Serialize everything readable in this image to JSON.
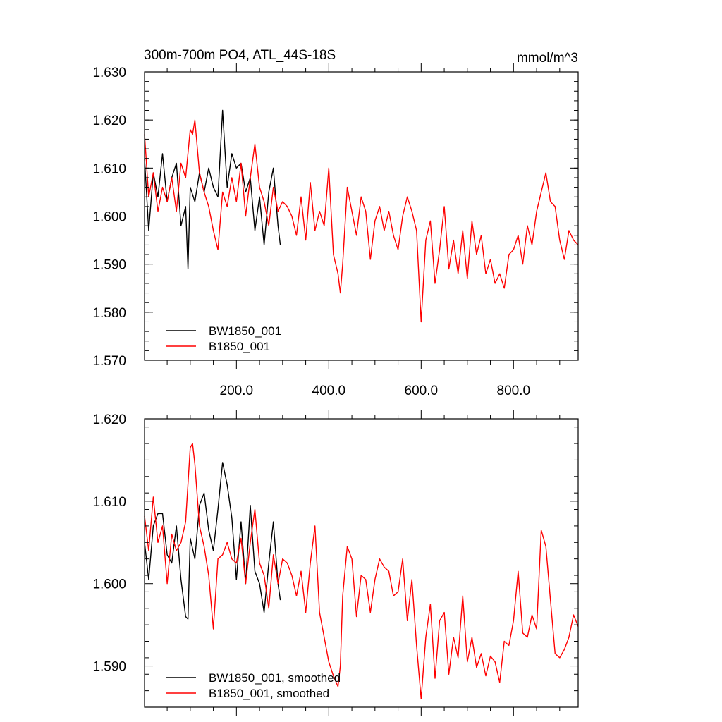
{
  "chart_data": [
    {
      "type": "line",
      "title": "300m-700m PO4, ATL_44S-18S",
      "units": "mmol/m^3",
      "xlim": [
        1,
        940
      ],
      "ylim": [
        1.57,
        1.63
      ],
      "x_ticks": [
        200,
        400,
        600,
        800
      ],
      "x_tick_labels": [
        "200.0",
        "400.0",
        "600.0",
        "800.0"
      ],
      "y_ticks": [
        1.57,
        1.58,
        1.59,
        1.6,
        1.61,
        1.62,
        1.63
      ],
      "y_tick_labels": [
        "1.570",
        "1.580",
        "1.590",
        "1.600",
        "1.610",
        "1.620",
        "1.630"
      ],
      "legend_position": "bottom-left",
      "series": [
        {
          "name": "BW1850_001",
          "color": "#000000",
          "x": [
            1,
            10,
            20,
            30,
            40,
            50,
            60,
            70,
            80,
            90,
            95,
            100,
            110,
            120,
            130,
            140,
            150,
            160,
            170,
            180,
            190,
            200,
            210,
            220,
            230,
            240,
            250,
            260,
            270,
            280,
            290,
            295
          ],
          "values": [
            1.612,
            1.597,
            1.609,
            1.604,
            1.613,
            1.603,
            1.608,
            1.611,
            1.598,
            1.602,
            1.589,
            1.606,
            1.603,
            1.609,
            1.605,
            1.61,
            1.606,
            1.604,
            1.622,
            1.606,
            1.613,
            1.61,
            1.611,
            1.605,
            1.608,
            1.597,
            1.604,
            1.594,
            1.605,
            1.61,
            1.598,
            1.594
          ]
        },
        {
          "name": "B1850_001",
          "color": "#ff0000",
          "x": [
            1,
            10,
            20,
            30,
            40,
            50,
            60,
            70,
            80,
            90,
            100,
            105,
            110,
            120,
            130,
            140,
            150,
            160,
            170,
            180,
            190,
            200,
            210,
            220,
            230,
            240,
            250,
            260,
            270,
            280,
            290,
            300,
            310,
            320,
            330,
            340,
            350,
            360,
            370,
            380,
            390,
            400,
            410,
            420,
            425,
            430,
            440,
            450,
            460,
            470,
            480,
            490,
            500,
            510,
            520,
            530,
            540,
            550,
            560,
            570,
            580,
            590,
            600,
            610,
            620,
            630,
            640,
            650,
            660,
            670,
            680,
            690,
            700,
            710,
            720,
            730,
            740,
            750,
            760,
            770,
            780,
            790,
            800,
            810,
            820,
            830,
            840,
            850,
            860,
            870,
            880,
            890,
            900,
            910,
            920,
            930,
            940
          ],
          "values": [
            1.617,
            1.604,
            1.609,
            1.601,
            1.606,
            1.603,
            1.608,
            1.601,
            1.611,
            1.608,
            1.618,
            1.617,
            1.62,
            1.609,
            1.605,
            1.602,
            1.597,
            1.593,
            1.605,
            1.602,
            1.608,
            1.603,
            1.611,
            1.6,
            1.608,
            1.615,
            1.606,
            1.603,
            1.598,
            1.606,
            1.601,
            1.603,
            1.602,
            1.6,
            1.596,
            1.604,
            1.595,
            1.607,
            1.597,
            1.601,
            1.598,
            1.61,
            1.592,
            1.588,
            1.584,
            1.59,
            1.606,
            1.601,
            1.596,
            1.604,
            1.601,
            1.591,
            1.599,
            1.602,
            1.597,
            1.601,
            1.596,
            1.593,
            1.6,
            1.604,
            1.601,
            1.597,
            1.578,
            1.595,
            1.599,
            1.586,
            1.593,
            1.602,
            1.589,
            1.595,
            1.588,
            1.597,
            1.587,
            1.599,
            1.592,
            1.596,
            1.588,
            1.591,
            1.586,
            1.588,
            1.585,
            1.592,
            1.593,
            1.596,
            1.59,
            1.598,
            1.594,
            1.601,
            1.605,
            1.609,
            1.603,
            1.602,
            1.595,
            1.591,
            1.597,
            1.595,
            1.594
          ]
        }
      ]
    },
    {
      "type": "line",
      "title": "",
      "xlim": [
        1,
        940
      ],
      "ylim": [
        1.585,
        1.62
      ],
      "x_ticks": [
        200,
        400,
        600,
        800
      ],
      "x_tick_labels": [],
      "y_ticks": [
        1.59,
        1.6,
        1.61,
        1.62
      ],
      "y_tick_labels": [
        "1.590",
        "1.600",
        "1.610",
        "1.620"
      ],
      "legend_position": "bottom-left",
      "series": [
        {
          "name": "BW1850_001, smoothed",
          "color": "#000000",
          "x": [
            1,
            10,
            20,
            30,
            40,
            50,
            60,
            70,
            80,
            90,
            95,
            100,
            110,
            120,
            130,
            140,
            150,
            160,
            170,
            180,
            190,
            200,
            210,
            220,
            230,
            240,
            250,
            260,
            270,
            280,
            290,
            295
          ],
          "values": [
            1.605,
            1.6005,
            1.607,
            1.6085,
            1.6085,
            1.6035,
            1.6025,
            1.607,
            1.6005,
            1.596,
            1.5957,
            1.6055,
            1.603,
            1.6095,
            1.611,
            1.6065,
            1.604,
            1.609,
            1.6147,
            1.612,
            1.608,
            1.6005,
            1.6075,
            1.6,
            1.6095,
            1.6015,
            1.6,
            1.5965,
            1.6025,
            1.6075,
            1.6,
            1.598
          ]
        },
        {
          "name": "B1850_001, smoothed",
          "color": "#ff0000",
          "x": [
            1,
            10,
            20,
            30,
            40,
            50,
            60,
            70,
            80,
            90,
            100,
            105,
            110,
            120,
            130,
            140,
            150,
            160,
            170,
            180,
            190,
            200,
            210,
            220,
            230,
            240,
            250,
            260,
            270,
            280,
            290,
            300,
            310,
            320,
            330,
            340,
            350,
            360,
            370,
            380,
            390,
            400,
            410,
            420,
            425,
            430,
            440,
            450,
            460,
            470,
            480,
            490,
            500,
            510,
            520,
            530,
            540,
            550,
            560,
            570,
            580,
            590,
            600,
            610,
            620,
            630,
            640,
            650,
            660,
            670,
            680,
            690,
            700,
            710,
            720,
            730,
            740,
            750,
            760,
            770,
            780,
            790,
            800,
            810,
            820,
            830,
            840,
            850,
            860,
            870,
            880,
            890,
            900,
            910,
            920,
            930,
            940
          ],
          "values": [
            1.6082,
            1.604,
            1.6105,
            1.605,
            1.607,
            1.6,
            1.606,
            1.604,
            1.605,
            1.6075,
            1.6165,
            1.617,
            1.6145,
            1.607,
            1.6045,
            1.601,
            1.5945,
            1.603,
            1.6035,
            1.605,
            1.603,
            1.6025,
            1.6055,
            1.6,
            1.605,
            1.609,
            1.6025,
            1.601,
            1.597,
            1.6035,
            1.6,
            1.603,
            1.6025,
            1.601,
            1.5985,
            1.6015,
            1.5965,
            1.6025,
            1.607,
            1.5965,
            1.5935,
            1.5905,
            1.5888,
            1.5875,
            1.59,
            1.5985,
            1.6045,
            1.603,
            1.596,
            1.601,
            1.6005,
            1.5965,
            1.6005,
            1.603,
            1.602,
            1.6015,
            1.5985,
            1.599,
            1.603,
            1.5955,
            1.6005,
            1.5925,
            1.586,
            1.5935,
            1.5975,
            1.5885,
            1.5955,
            1.5965,
            1.589,
            1.5935,
            1.591,
            1.5985,
            1.5905,
            1.5935,
            1.5898,
            1.5915,
            1.5888,
            1.5912,
            1.5905,
            1.588,
            1.593,
            1.5925,
            1.5955,
            1.6015,
            1.594,
            1.5935,
            1.5962,
            1.5945,
            1.6065,
            1.6045,
            1.598,
            1.5915,
            1.591,
            1.592,
            1.5935,
            1.5962,
            1.5948
          ]
        }
      ]
    }
  ]
}
